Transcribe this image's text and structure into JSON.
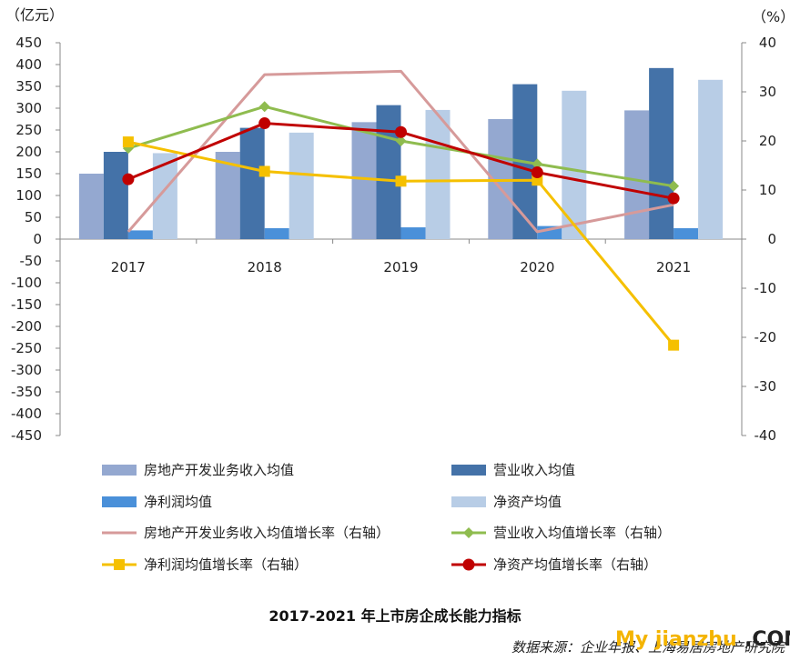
{
  "chart_data": {
    "type": "bar",
    "title": "2017-2021 年上市房企成长能力指标",
    "source": "数据来源：企业年报、上海易居房地产研究院",
    "ylabel_left": "（亿元）",
    "ylabel_right": "（%）",
    "categories": [
      "2017",
      "2018",
      "2019",
      "2020",
      "2021"
    ],
    "y_left_ticks": [
      450,
      400,
      350,
      300,
      250,
      200,
      150,
      100,
      50,
      0,
      -50,
      -100,
      -150,
      -200,
      -250,
      -300,
      -350,
      -400,
      -450
    ],
    "y_right_ticks": [
      40,
      30,
      20,
      10,
      0,
      -10,
      -20,
      -30,
      -40
    ],
    "ylim_left": [
      -450,
      450
    ],
    "ylim_right": [
      -40,
      40
    ],
    "bar_series": [
      {
        "name": "房地产开发业务收入均值",
        "color": "#94a8d0",
        "values": [
          150,
          200,
          268,
          275,
          295
        ]
      },
      {
        "name": "营业收入均值",
        "color": "#4472a8",
        "values": [
          200,
          255,
          307,
          355,
          392
        ]
      },
      {
        "name": "净利润均值",
        "color": "#4a90d9",
        "values": [
          20,
          25,
          27,
          30,
          25
        ]
      },
      {
        "name": "净资产均值",
        "color": "#b8cde6",
        "values": [
          197,
          244,
          296,
          340,
          365
        ]
      }
    ],
    "line_series": [
      {
        "name": "房地产开发业务收入均值增长率（右轴）",
        "color": "#d69a9a",
        "marker": "none",
        "values": [
          1.5,
          33.5,
          34.2,
          1.5,
          7.0
        ]
      },
      {
        "name": "营业收入均值增长率（右轴）",
        "color": "#8fbc4f",
        "marker": "diamond",
        "values": [
          18.5,
          27.0,
          20.0,
          15.3,
          10.8
        ]
      },
      {
        "name": "净利润均值增长率（右轴）",
        "color": "#f5c000",
        "marker": "square",
        "values": [
          19.8,
          13.8,
          11.8,
          12.0,
          -21.6
        ]
      },
      {
        "name": "净资产均值增长率（右轴）",
        "color": "#c00000",
        "marker": "circle",
        "values": [
          12.2,
          23.6,
          21.8,
          13.6,
          8.3
        ]
      }
    ],
    "legend_position": "bottom",
    "grid": false
  },
  "watermark": {
    "part1": "My jianzhu",
    "part2": ".COM"
  }
}
